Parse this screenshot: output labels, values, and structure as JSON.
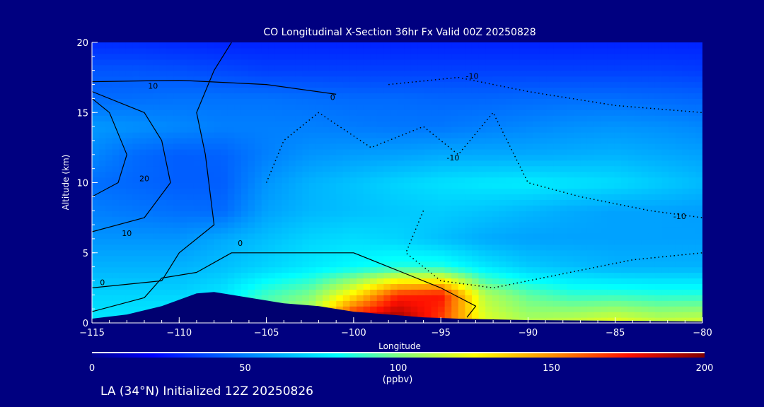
{
  "chart_data": {
    "type": "heatmap",
    "title": "CO Longitudinal X-Section 36hr  Fx Valid 00Z 20250828",
    "xlabel": "Longitude",
    "ylabel": "Altitude (km)",
    "xlim": [
      -115,
      -80
    ],
    "ylim": [
      0,
      20
    ],
    "xticks": [
      -115,
      -110,
      -105,
      -100,
      -95,
      -90,
      -85,
      -80
    ],
    "xtick_labels": [
      "−115",
      "−110",
      "−105",
      "−100",
      "−95",
      "−90",
      "−85",
      "−80"
    ],
    "yticks": [
      0,
      5,
      10,
      15,
      20
    ],
    "ytick_labels": [
      "0",
      "5",
      "10",
      "15",
      "20"
    ],
    "x": [
      -115,
      -112.5,
      -110,
      -107.5,
      -105,
      -102.5,
      -100,
      -97.5,
      -95,
      -92.5,
      -90,
      -87.5,
      -85,
      -82.5,
      -80
    ],
    "y": [
      0,
      2,
      4,
      6,
      8,
      10,
      12,
      14,
      16,
      18,
      20
    ],
    "values": [
      [
        75,
        75,
        80,
        80,
        100,
        115,
        190,
        200,
        165,
        120,
        110,
        115,
        122,
        115,
        118
      ],
      [
        70,
        70,
        70,
        75,
        90,
        100,
        130,
        170,
        175,
        110,
        95,
        88,
        88,
        86,
        86
      ],
      [
        62,
        62,
        62,
        65,
        70,
        75,
        80,
        85,
        85,
        75,
        68,
        65,
        62,
        62,
        62
      ],
      [
        55,
        55,
        55,
        60,
        65,
        70,
        72,
        70,
        65,
        60,
        58,
        58,
        58,
        58,
        58
      ],
      [
        50,
        48,
        46,
        45,
        58,
        63,
        65,
        67,
        68,
        66,
        63,
        60,
        58,
        58,
        57
      ],
      [
        46,
        44,
        42,
        42,
        55,
        62,
        66,
        70,
        73,
        75,
        76,
        74,
        72,
        68,
        64
      ],
      [
        52,
        45,
        42,
        43,
        50,
        55,
        57,
        58,
        60,
        60,
        60,
        61,
        62,
        60,
        58
      ],
      [
        56,
        54,
        52,
        50,
        50,
        50,
        49,
        48,
        48,
        50,
        52,
        54,
        55,
        54,
        52
      ],
      [
        45,
        46,
        47,
        47,
        47,
        46,
        45,
        45,
        44,
        44,
        45,
        46,
        46,
        45,
        44
      ],
      [
        40,
        40,
        39,
        37,
        35,
        35,
        35,
        35,
        35,
        35,
        35,
        35,
        35,
        35,
        34
      ],
      [
        30,
        30,
        29,
        28,
        28,
        28,
        28,
        28,
        28,
        28,
        28,
        28,
        28,
        28,
        28
      ]
    ],
    "terrain": {
      "lon": [
        -115,
        -113,
        -111,
        -109,
        -108,
        -106,
        -104,
        -102,
        -100,
        -98,
        -96,
        -94,
        -90,
        -85,
        -80
      ],
      "alt": [
        0.3,
        0.6,
        1.2,
        2.1,
        2.2,
        1.8,
        1.4,
        1.2,
        0.8,
        0.6,
        0.4,
        0.3,
        0.2,
        0.15,
        0.1
      ]
    },
    "contours": [
      {
        "style": "solid",
        "points": [
          [
            -115,
            9
          ],
          [
            -113.5,
            10
          ],
          [
            -113,
            12
          ],
          [
            -114,
            15
          ],
          [
            -115,
            16
          ]
        ]
      },
      {
        "style": "solid",
        "points": [
          [
            -115,
            6.5
          ],
          [
            -112,
            7.5
          ],
          [
            -110.5,
            10
          ],
          [
            -111,
            13
          ],
          [
            -112,
            15
          ],
          [
            -115,
            16.5
          ]
        ]
      },
      {
        "style": "solid",
        "points": [
          [
            -115,
            2.5
          ],
          [
            -111,
            3
          ],
          [
            -110,
            5
          ],
          [
            -108,
            7
          ],
          [
            -108.5,
            12
          ],
          [
            -109,
            15
          ],
          [
            -108,
            18
          ],
          [
            -107,
            20
          ]
        ]
      },
      {
        "style": "solid",
        "points": [
          [
            -115,
            0.8
          ],
          [
            -112,
            1.8
          ],
          [
            -111,
            3.2
          ],
          [
            -109,
            3.6
          ],
          [
            -107,
            5
          ],
          [
            -104,
            5
          ],
          [
            -100,
            5
          ],
          [
            -97,
            3.5
          ],
          [
            -95,
            2.5
          ],
          [
            -93,
            1.2
          ],
          [
            -93.5,
            0.4
          ]
        ]
      },
      {
        "style": "solid",
        "points": [
          [
            -115,
            17.2
          ],
          [
            -110,
            17.3
          ],
          [
            -105,
            17
          ],
          [
            -101,
            16.3
          ]
        ]
      },
      {
        "style": "dotted",
        "points": [
          [
            -105,
            10
          ],
          [
            -104,
            13
          ],
          [
            -102,
            15
          ],
          [
            -99,
            12.5
          ],
          [
            -96,
            14
          ],
          [
            -94,
            12
          ],
          [
            -92,
            15
          ],
          [
            -90,
            10
          ],
          [
            -87,
            9
          ],
          [
            -83,
            8
          ],
          [
            -80,
            7.5
          ]
        ]
      },
      {
        "style": "dotted",
        "points": [
          [
            -98,
            17
          ],
          [
            -94,
            17.5
          ],
          [
            -90,
            16.5
          ],
          [
            -85,
            15.5
          ],
          [
            -80,
            15
          ]
        ]
      },
      {
        "style": "dotted",
        "points": [
          [
            -96,
            8
          ],
          [
            -97,
            5
          ],
          [
            -95,
            3
          ],
          [
            -92,
            2.5
          ],
          [
            -88,
            3.5
          ],
          [
            -84,
            4.5
          ],
          [
            -80,
            5
          ]
        ]
      }
    ],
    "contour_labels": [
      {
        "text": "20",
        "lon": -112,
        "alt": 10.3
      },
      {
        "text": "10",
        "lon": -113,
        "alt": 6.4
      },
      {
        "text": "10",
        "lon": -111.5,
        "alt": 16.9
      },
      {
        "text": "0",
        "lon": -114.4,
        "alt": 2.9
      },
      {
        "text": "0",
        "lon": -106.5,
        "alt": 5.7
      },
      {
        "text": "0",
        "lon": -101.2,
        "alt": 16.1
      },
      {
        "text": "-10",
        "lon": -93.2,
        "alt": 17.6
      },
      {
        "text": "-10",
        "lon": -94.3,
        "alt": 11.8
      },
      {
        "text": "-10",
        "lon": -81.3,
        "alt": 7.6
      }
    ],
    "colorbar": {
      "ticks": [
        0,
        50,
        100,
        150,
        200
      ],
      "tick_labels": [
        "0",
        "50",
        "100",
        "150",
        "200"
      ],
      "units": "(ppbv)",
      "range": [
        0,
        200
      ]
    }
  },
  "footer": {
    "caption": "LA (34°N) Initialized 12Z 20250826"
  },
  "colors": {
    "background": "#000080",
    "terrain": "#000070",
    "text": "#ffffff"
  }
}
